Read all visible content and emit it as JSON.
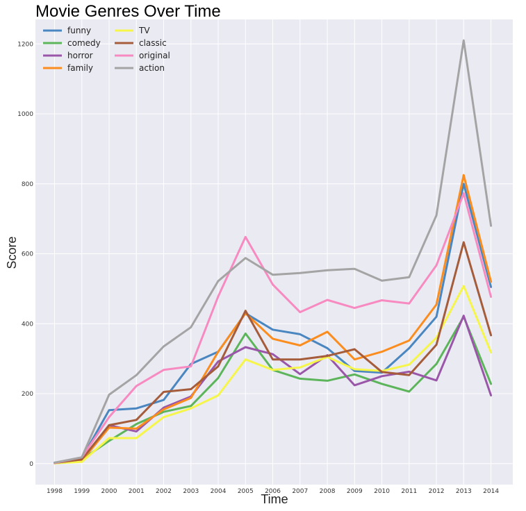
{
  "chart_data": {
    "type": "line",
    "title": "Movie Genres Over Time",
    "xlabel": "Time",
    "ylabel": "Score",
    "x": [
      1998,
      1999,
      2000,
      2001,
      2002,
      2003,
      2004,
      2005,
      2006,
      2007,
      2008,
      2009,
      2010,
      2011,
      2012,
      2013,
      2014
    ],
    "y_ticks": [
      0,
      200,
      400,
      600,
      800,
      1000,
      1200
    ],
    "ylim": [
      -60,
      1270
    ],
    "xlim": [
      1997.3,
      2014.8
    ],
    "grid": true,
    "legend_position": "top-left",
    "series": [
      {
        "name": "funny",
        "color": "#4a86c0",
        "values": [
          3,
          15,
          153,
          158,
          182,
          285,
          320,
          430,
          383,
          370,
          330,
          265,
          260,
          330,
          420,
          800,
          505
        ]
      },
      {
        "name": "comedy",
        "color": "#5cb55a",
        "values": [
          2,
          12,
          65,
          113,
          148,
          165,
          245,
          372,
          268,
          243,
          237,
          255,
          228,
          206,
          285,
          420,
          228
        ]
      },
      {
        "name": "horror",
        "color": "#9a56a8",
        "values": [
          2,
          10,
          110,
          92,
          160,
          192,
          292,
          333,
          313,
          256,
          310,
          224,
          250,
          263,
          238,
          423,
          195
        ]
      },
      {
        "name": "family",
        "color": "#fb8c1e",
        "values": [
          1,
          8,
          103,
          100,
          155,
          188,
          320,
          430,
          357,
          338,
          377,
          298,
          320,
          352,
          455,
          825,
          520
        ]
      },
      {
        "name": "TV",
        "color": "#f6f64a",
        "values": [
          1,
          5,
          73,
          73,
          133,
          158,
          195,
          298,
          268,
          275,
          305,
          270,
          265,
          283,
          360,
          508,
          318
        ]
      },
      {
        "name": "classic",
        "color": "#a55c3a",
        "values": [
          2,
          12,
          110,
          125,
          205,
          213,
          278,
          437,
          298,
          298,
          308,
          327,
          262,
          253,
          340,
          633,
          367
        ]
      },
      {
        "name": "original",
        "color": "#f78bc1",
        "values": [
          2,
          18,
          133,
          222,
          268,
          278,
          478,
          648,
          512,
          433,
          468,
          445,
          467,
          458,
          567,
          773,
          477
        ]
      },
      {
        "name": "action",
        "color": "#a4a4a4",
        "values": [
          3,
          18,
          197,
          253,
          335,
          390,
          522,
          588,
          540,
          545,
          553,
          557,
          523,
          533,
          710,
          1210,
          680
        ]
      }
    ]
  }
}
